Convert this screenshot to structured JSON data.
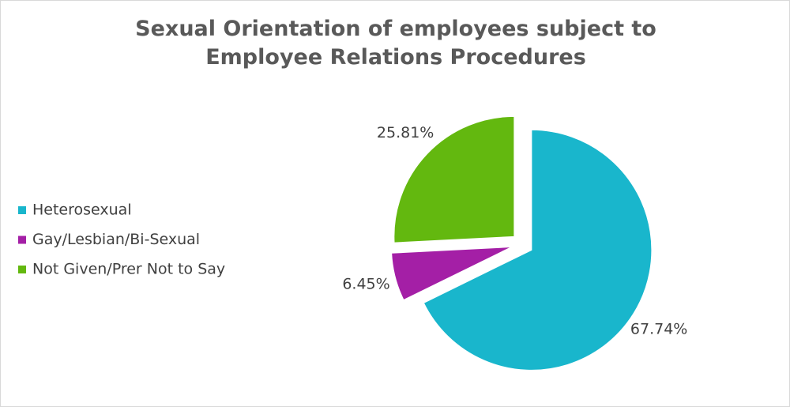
{
  "chart_data": {
    "type": "pie",
    "title": "Sexual Orientation of employees subject to Employee Relations Procedures",
    "categories": [
      "Heterosexual",
      "Gay/Lesbian/Bi-Sexual",
      "Not Given/Prer Not to Say"
    ],
    "values": [
      67.74,
      6.45,
      25.81
    ],
    "value_labels": [
      "67.74%",
      "6.45%",
      "25.81%"
    ],
    "colors": [
      "#19b6cc",
      "#a41fa6",
      "#63b80f"
    ],
    "legend": "left"
  }
}
